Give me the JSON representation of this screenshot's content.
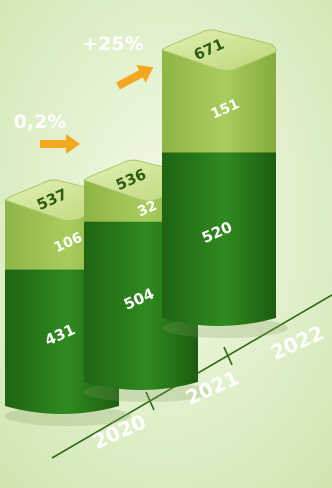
{
  "chart_data": {
    "type": "bar",
    "stacked": true,
    "categories": [
      "2020",
      "2021",
      "2022"
    ],
    "series": [
      {
        "values": [
          431,
          504,
          520
        ]
      },
      {
        "values": [
          106,
          32,
          151
        ]
      }
    ],
    "totals": [
      537,
      536,
      671
    ],
    "changes": [
      {
        "label": "0,2%"
      },
      {
        "label": "+25%"
      }
    ],
    "colors": {
      "background": "#dff0c6",
      "dark_segment": "#2a7d1c",
      "light_segment": "#9cc04f",
      "top_face": "#d2e79a",
      "arrow": "#f3a81f",
      "axis": "#2e6a15"
    }
  }
}
